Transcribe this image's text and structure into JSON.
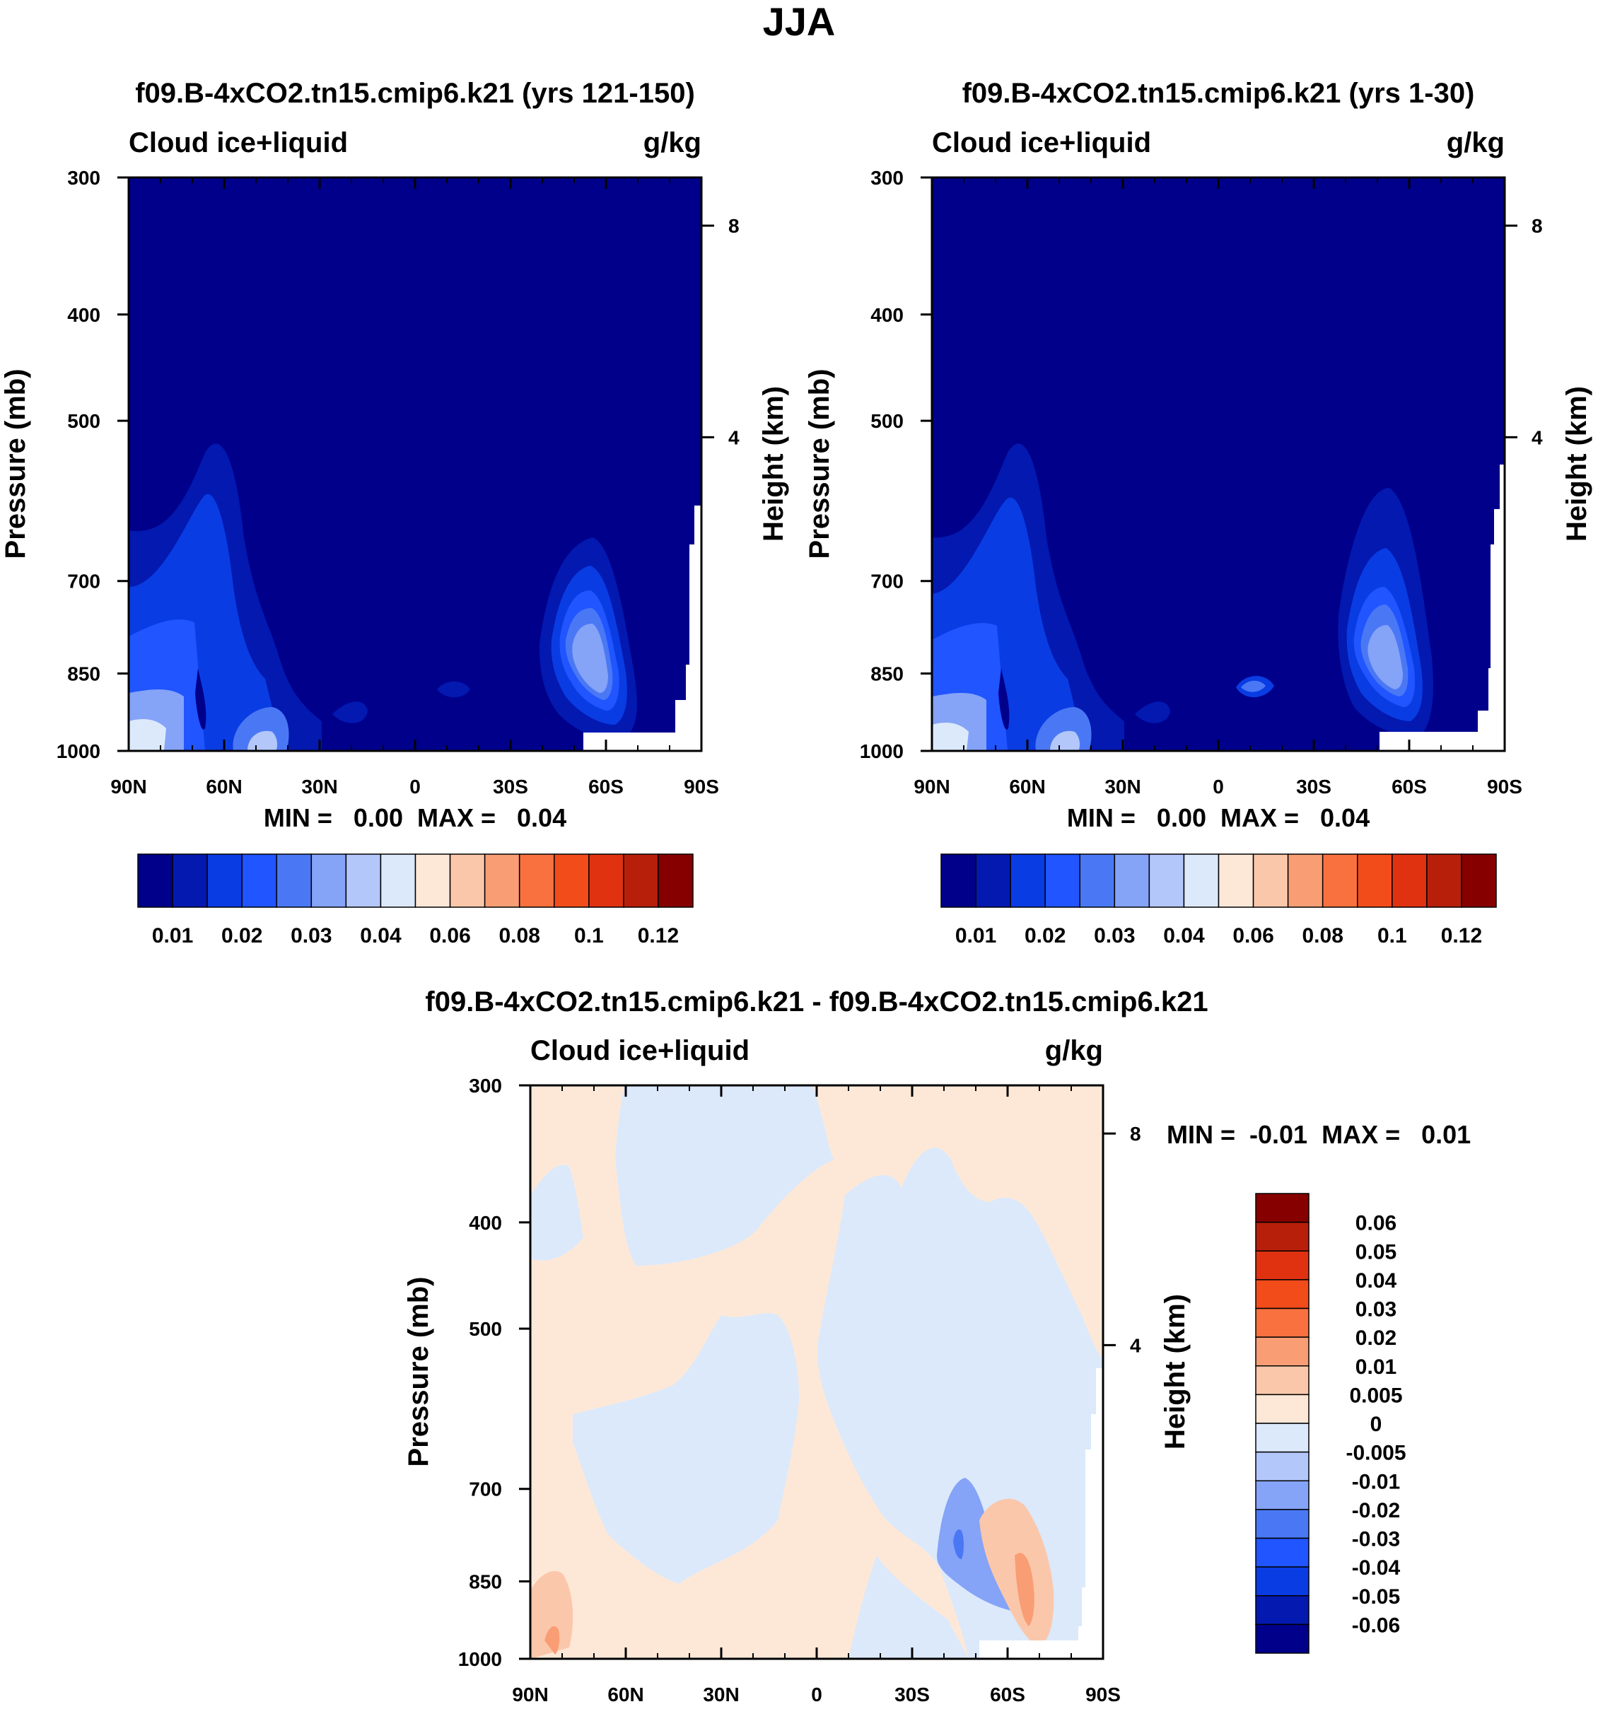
{
  "chart_data": [
    {
      "type": "contour",
      "title": "f09.B-4xCO2.tn15.cmip6.k21 (yrs 121-150)",
      "left_string": "Cloud ice+liquid",
      "right_string": "g/kg",
      "xlabel": "",
      "ylabel": "Pressure (mb)",
      "y2label": "Height (km)",
      "x_ticks": [
        "90N",
        "60N",
        "30N",
        "0",
        "30S",
        "60S",
        "90S"
      ],
      "x_range": [
        90,
        -90
      ],
      "y_ticks": [
        300,
        400,
        500,
        700,
        850,
        1000
      ],
      "y_range": [
        1000,
        300
      ],
      "y2_ticks": [
        "8",
        "4"
      ],
      "min_max_text": "MIN =   0.00  MAX =   0.04",
      "min": 0.0,
      "max": 0.04,
      "colorbar_levels": [
        "0.01",
        "0.02",
        "0.03",
        "0.04",
        "0.06",
        "0.08",
        "0.1",
        "0.12"
      ],
      "features": [
        {
          "lat": 63,
          "p": 870,
          "value": 0.02
        },
        {
          "lat": 78,
          "p": 960,
          "value": 0.04
        },
        {
          "lat": 48,
          "p": 975,
          "value": 0.035
        },
        {
          "lat": -62,
          "p": 880,
          "value": 0.04
        },
        {
          "lat": -10,
          "p": 925,
          "value": 0.015
        }
      ]
    },
    {
      "type": "contour",
      "title": "f09.B-4xCO2.tn15.cmip6.k21 (yrs 1-30)",
      "left_string": "Cloud ice+liquid",
      "right_string": "g/kg",
      "xlabel": "",
      "ylabel": "Pressure (mb)",
      "y2label": "Height (km)",
      "x_ticks": [
        "90N",
        "60N",
        "30N",
        "0",
        "30S",
        "60S",
        "90S"
      ],
      "x_range": [
        90,
        -90
      ],
      "y_ticks": [
        300,
        400,
        500,
        700,
        850,
        1000
      ],
      "y_range": [
        1000,
        300
      ],
      "y2_ticks": [
        "8",
        "4"
      ],
      "min_max_text": "MIN =   0.00  MAX =   0.04",
      "min": 0.0,
      "max": 0.04,
      "colorbar_levels": [
        "0.01",
        "0.02",
        "0.03",
        "0.04",
        "0.06",
        "0.08",
        "0.1",
        "0.12"
      ],
      "features": [
        {
          "lat": 63,
          "p": 870,
          "value": 0.02
        },
        {
          "lat": 78,
          "p": 960,
          "value": 0.04
        },
        {
          "lat": 48,
          "p": 975,
          "value": 0.035
        },
        {
          "lat": -62,
          "p": 880,
          "value": 0.04
        },
        {
          "lat": -10,
          "p": 925,
          "value": 0.015
        }
      ]
    },
    {
      "type": "contour",
      "title": "f09.B-4xCO2.tn15.cmip6.k21 - f09.B-4xCO2.tn15.cmip6.k21",
      "left_string": "Cloud ice+liquid",
      "right_string": "g/kg",
      "xlabel": "",
      "ylabel": "Pressure (mb)",
      "y2label": "Height (km)",
      "x_ticks": [
        "90N",
        "60N",
        "30N",
        "0",
        "30S",
        "60S",
        "90S"
      ],
      "x_range": [
        90,
        -90
      ],
      "y_ticks": [
        300,
        400,
        500,
        700,
        850,
        1000
      ],
      "y_range": [
        1000,
        300
      ],
      "y2_ticks": [
        "8",
        "4"
      ],
      "min_max_text": "MIN =  -0.01  MAX =   0.01",
      "min": -0.01,
      "max": 0.01,
      "colorbar_levels": [
        "0.06",
        "0.05",
        "0.04",
        "0.03",
        "0.02",
        "0.01",
        "0.005",
        "0",
        "-0.005",
        "-0.01",
        "-0.02",
        "-0.03",
        "-0.04",
        "-0.05",
        "-0.06"
      ],
      "features": [
        {
          "lat": -55,
          "p": 900,
          "value": -0.01
        },
        {
          "lat": -65,
          "p": 950,
          "value": 0.01
        },
        {
          "lat": 85,
          "p": 960,
          "value": 0.01
        }
      ]
    }
  ],
  "figure": {
    "main_title": "JJA"
  },
  "colors": {
    "seq_colorbar": [
      "#00008b",
      "#0319b0",
      "#0a3ce3",
      "#2055ff",
      "#4a78f5",
      "#85a3f7",
      "#b4c7fb",
      "#dbe9fb",
      "#fde8d8",
      "#fbc7aa",
      "#f99d75",
      "#f9713f",
      "#f24c1b",
      "#e03210",
      "#b81f0a",
      "#870000"
    ],
    "diff_colorbar": [
      "#870000",
      "#b81f0a",
      "#e03210",
      "#f24c1b",
      "#f9713f",
      "#f99d75",
      "#fbc7aa",
      "#fde8d8",
      "#dbe9fb",
      "#b4c7fb",
      "#85a3f7",
      "#4a78f5",
      "#2055ff",
      "#0a3ce3",
      "#0319b0",
      "#00008b"
    ],
    "background": "#00008b",
    "diff_pos": "#fde8d8",
    "diff_neg": "#dbe9fb"
  }
}
